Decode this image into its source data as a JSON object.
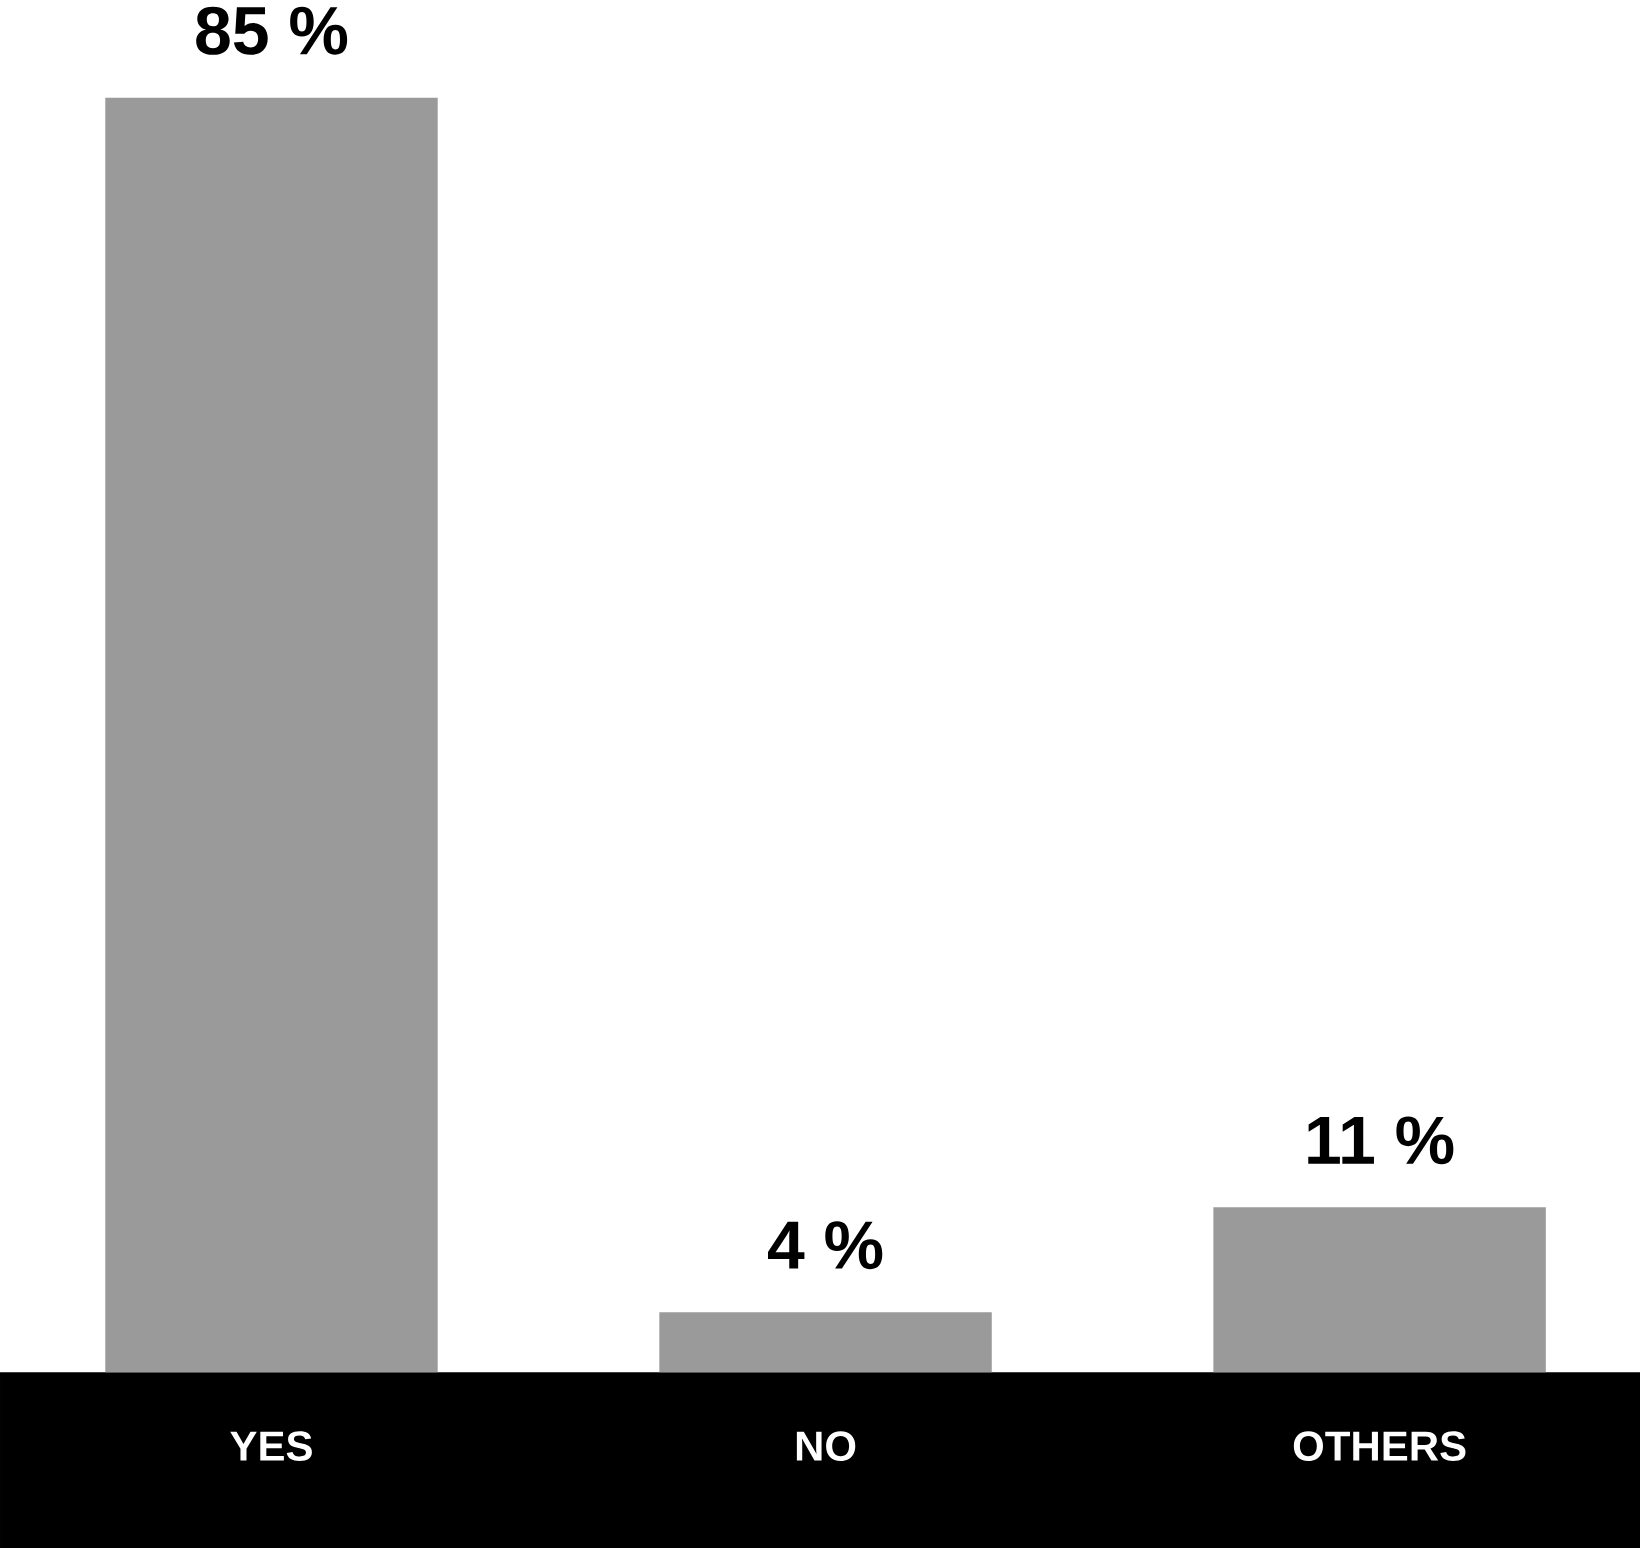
{
  "chart_data": {
    "type": "bar",
    "categories": [
      "YES",
      "NO",
      "OTHERS"
    ],
    "values": [
      85,
      4,
      11
    ],
    "value_labels": [
      "85 %",
      "4 %",
      "11 %"
    ],
    "color": "#9a9a9a"
  }
}
